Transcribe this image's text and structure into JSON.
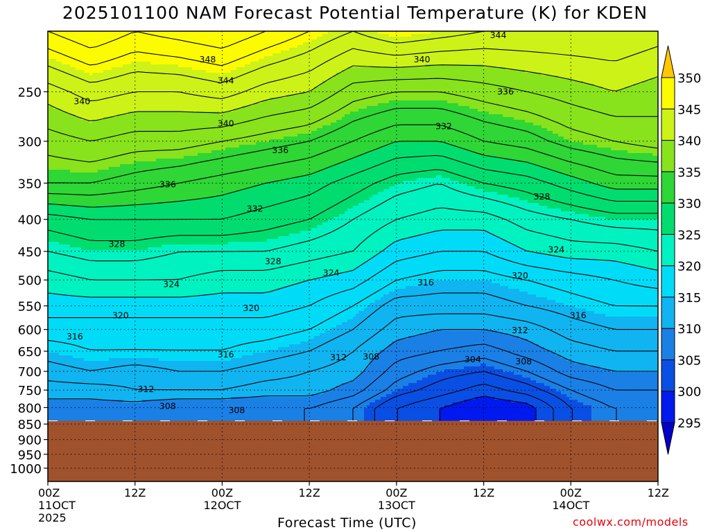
{
  "chart_data": {
    "type": "heatmap",
    "title": "2025101100 NAM Forecast Potential Temperature (K) for KDEN",
    "xlabel": "Forecast Time (UTC)",
    "ylabel": "",
    "credit": "coolwx.com/models",
    "x_unit": "hours from 00Z 11OCT 2025",
    "xlim": [
      0,
      84
    ],
    "x_ticks": [
      {
        "x": 0,
        "lines": [
          "00Z",
          "11OCT",
          "2025"
        ]
      },
      {
        "x": 12,
        "lines": [
          "12Z"
        ]
      },
      {
        "x": 24,
        "lines": [
          "00Z",
          "12OCT"
        ]
      },
      {
        "x": 36,
        "lines": [
          "12Z"
        ]
      },
      {
        "x": 48,
        "lines": [
          "00Z",
          "13OCT"
        ]
      },
      {
        "x": 60,
        "lines": [
          "12Z"
        ]
      },
      {
        "x": 72,
        "lines": [
          "00Z",
          "14OCT"
        ]
      },
      {
        "x": 84,
        "lines": [
          "12Z"
        ]
      }
    ],
    "y_unit": "hPa",
    "ylim": [
      1050,
      200
    ],
    "y_ticks": [
      250,
      300,
      350,
      400,
      450,
      500,
      550,
      600,
      650,
      700,
      750,
      800,
      850,
      900,
      950,
      1000
    ],
    "grid": true,
    "surface_pressure_hPa": 840,
    "colorbar": {
      "levels": [
        295,
        300,
        305,
        310,
        315,
        320,
        325,
        330,
        335,
        340,
        345,
        350
      ],
      "labels": [
        "350",
        "345",
        "340",
        "335",
        "330",
        "325",
        "320",
        "315",
        "310",
        "305",
        "300",
        "295"
      ],
      "colors": [
        "#0000e0",
        "#0019ee",
        "#0a4fe3",
        "#1a80e6",
        "#10b4f0",
        "#00dcf8",
        "#00f2c0",
        "#00dd6e",
        "#2ed636",
        "#88e21c",
        "#ccf218",
        "#fdfb00",
        "#ffd000"
      ],
      "under_color": "#0000c8",
      "over_color": "#ffc800"
    },
    "terrain_color": "#a0522d",
    "levels_hPa": [
      800,
      750,
      700,
      650,
      600,
      550,
      500,
      450,
      400,
      350,
      300,
      250,
      200
    ],
    "times_h": [
      0,
      6,
      12,
      18,
      24,
      30,
      36,
      42,
      48,
      54,
      60,
      66,
      72,
      78,
      84
    ],
    "theta_K": [
      [
        309,
        309,
        309,
        308,
        308,
        308,
        308,
        306,
        302,
        300,
        298,
        299,
        304,
        306,
        306
      ],
      [
        311,
        311,
        312,
        312,
        312,
        311,
        311,
        309,
        305,
        303,
        301,
        303,
        306,
        308,
        308
      ],
      [
        313,
        314,
        313,
        314,
        314,
        313,
        312,
        311,
        307,
        305,
        304,
        306,
        309,
        310,
        310
      ],
      [
        315,
        316,
        316,
        316,
        316,
        315,
        314,
        312,
        309,
        308,
        307,
        309,
        311,
        312,
        312
      ],
      [
        317,
        317,
        317,
        317,
        317,
        317,
        316,
        314,
        311,
        310,
        310,
        311,
        313,
        314,
        314
      ],
      [
        319,
        319,
        319,
        319,
        319,
        319,
        318,
        316,
        313,
        313,
        313,
        314,
        315,
        316,
        316
      ],
      [
        321,
        322,
        322,
        322,
        321,
        321,
        320,
        319,
        316,
        315,
        315,
        316,
        317,
        318,
        319
      ],
      [
        324,
        325,
        325,
        324,
        324,
        324,
        323,
        322,
        319,
        318,
        318,
        320,
        321,
        321,
        322
      ],
      [
        327,
        328,
        328,
        328,
        328,
        327,
        326,
        324,
        322,
        321,
        321,
        323,
        324,
        325,
        325
      ],
      [
        334,
        334,
        333,
        332,
        331,
        330,
        329,
        327,
        325,
        324,
        326,
        327,
        329,
        331,
        331
      ],
      [
        337,
        338,
        337,
        337,
        336,
        335,
        334,
        332,
        330,
        330,
        332,
        333,
        335,
        336,
        337
      ],
      [
        341,
        343,
        342,
        342,
        343,
        341,
        340,
        337,
        336,
        336,
        337,
        338,
        339,
        340,
        339
      ],
      [
        348,
        350,
        348,
        349,
        350,
        348,
        346,
        344,
        346,
        345,
        344,
        344,
        344,
        344,
        343
      ]
    ],
    "contour_interval_K": 2,
    "contour_labels": [
      {
        "text": "348",
        "x": 22,
        "p": 222
      },
      {
        "text": "344",
        "x": 24.5,
        "p": 240
      },
      {
        "text": "340",
        "x": 4.7,
        "p": 259
      },
      {
        "text": "340",
        "x": 24.5,
        "p": 281
      },
      {
        "text": "336",
        "x": 32,
        "p": 310
      },
      {
        "text": "336",
        "x": 16.5,
        "p": 352
      },
      {
        "text": "332",
        "x": 28.5,
        "p": 385
      },
      {
        "text": "328",
        "x": 9.5,
        "p": 438
      },
      {
        "text": "328",
        "x": 31,
        "p": 467
      },
      {
        "text": "324",
        "x": 17,
        "p": 508
      },
      {
        "text": "324",
        "x": 39,
        "p": 487
      },
      {
        "text": "320",
        "x": 10,
        "p": 570
      },
      {
        "text": "320",
        "x": 28,
        "p": 555
      },
      {
        "text": "316",
        "x": 3.7,
        "p": 616
      },
      {
        "text": "316",
        "x": 24.5,
        "p": 658
      },
      {
        "text": "316",
        "x": 52,
        "p": 505
      },
      {
        "text": "316",
        "x": 73,
        "p": 570
      },
      {
        "text": "312",
        "x": 13.5,
        "p": 748
      },
      {
        "text": "312",
        "x": 40,
        "p": 665
      },
      {
        "text": "312",
        "x": 65,
        "p": 602
      },
      {
        "text": "308",
        "x": 16.5,
        "p": 796
      },
      {
        "text": "308",
        "x": 26,
        "p": 808
      },
      {
        "text": "308",
        "x": 44.5,
        "p": 663
      },
      {
        "text": "308",
        "x": 65.5,
        "p": 675
      },
      {
        "text": "304",
        "x": 58.5,
        "p": 670
      },
      {
        "text": "340",
        "x": 51.5,
        "p": 222
      },
      {
        "text": "344",
        "x": 62,
        "p": 203
      },
      {
        "text": "336",
        "x": 63,
        "p": 250
      },
      {
        "text": "332",
        "x": 54.5,
        "p": 284
      },
      {
        "text": "328",
        "x": 68,
        "p": 368
      },
      {
        "text": "324",
        "x": 70,
        "p": 447
      },
      {
        "text": "320",
        "x": 65,
        "p": 492
      }
    ]
  }
}
